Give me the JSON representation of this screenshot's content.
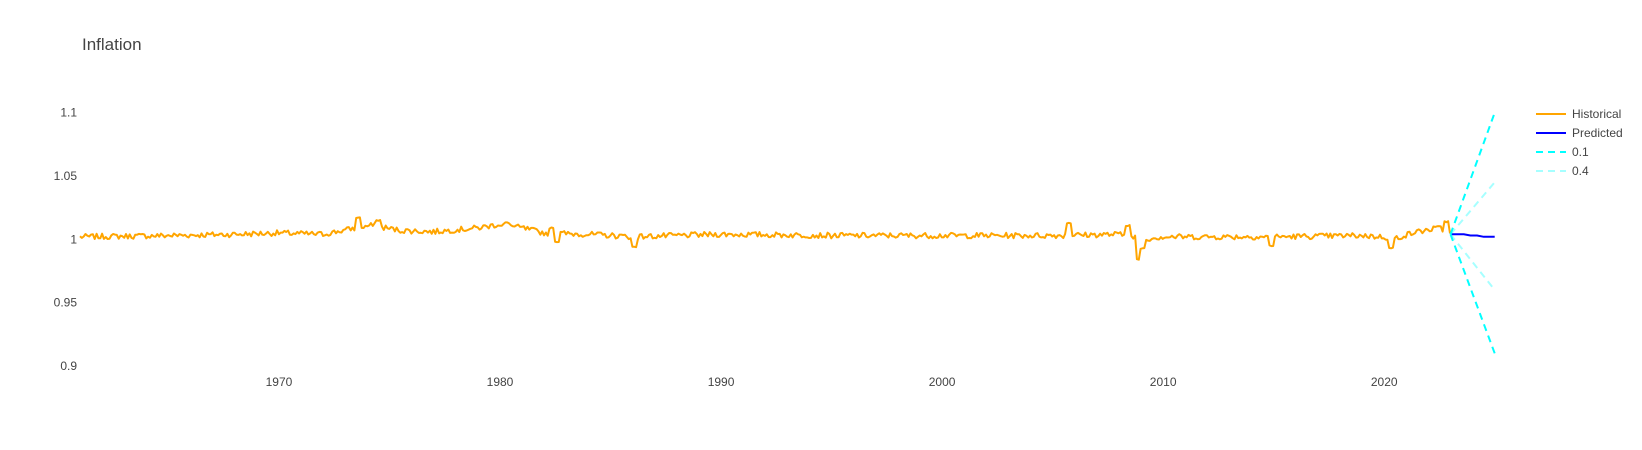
{
  "chart_data": {
    "type": "line",
    "title": "Inflation",
    "xlabel": "",
    "ylabel": "",
    "xlim": [
      1961,
      2025.6
    ],
    "ylim": [
      0.9,
      1.11
    ],
    "x_ticks": [
      {
        "value": 1970,
        "label": "1970"
      },
      {
        "value": 1980,
        "label": "1980"
      },
      {
        "value": 1990,
        "label": "1990"
      },
      {
        "value": 2000,
        "label": "2000"
      },
      {
        "value": 2010,
        "label": "2010"
      },
      {
        "value": 2020,
        "label": "2020"
      }
    ],
    "y_ticks": [
      {
        "value": 0.9,
        "label": "0.9"
      },
      {
        "value": 0.95,
        "label": "0.95"
      },
      {
        "value": 1.0,
        "label": "1"
      },
      {
        "value": 1.05,
        "label": "1.05"
      },
      {
        "value": 1.1,
        "label": "1.1"
      }
    ],
    "legend_position": "top-right",
    "series": [
      {
        "name": "Historical",
        "color": "#FFA500",
        "dash": "solid",
        "generated": true,
        "x_start": 1961,
        "x_end": 2023.0,
        "x_step": 0.0833,
        "base": 1.0,
        "anchors": [
          [
            1961,
            1.002
          ],
          [
            1965,
            1.003
          ],
          [
            1968,
            1.004
          ],
          [
            1970,
            1.005
          ],
          [
            1972,
            1.004
          ],
          [
            1973.5,
            1.009
          ],
          [
            1974.2,
            1.011
          ],
          [
            1975.5,
            1.007
          ],
          [
            1977,
            1.006
          ],
          [
            1979,
            1.009
          ],
          [
            1980,
            1.012
          ],
          [
            1981,
            1.009
          ],
          [
            1982,
            1.005
          ],
          [
            1984,
            1.004
          ],
          [
            1986,
            1.002
          ],
          [
            1990,
            1.004
          ],
          [
            1995,
            1.003
          ],
          [
            2000,
            1.003
          ],
          [
            2005,
            1.003
          ],
          [
            2008,
            1.004
          ],
          [
            2009,
            1.0
          ],
          [
            2010,
            1.002
          ],
          [
            2015,
            1.002
          ],
          [
            2019,
            1.003
          ],
          [
            2020.5,
            1.001
          ],
          [
            2021.5,
            1.006
          ],
          [
            2022.5,
            1.009
          ],
          [
            2023.0,
            1.004
          ]
        ],
        "noise": 0.0022,
        "spikes": [
          [
            1973.6,
            1.017
          ],
          [
            1974.5,
            1.015
          ],
          [
            1980.3,
            1.013
          ],
          [
            1982.3,
            1.009
          ],
          [
            1982.6,
            0.998
          ],
          [
            1986.1,
            0.994
          ],
          [
            2005.7,
            1.013
          ],
          [
            2008.4,
            1.011
          ],
          [
            2008.9,
            0.984
          ],
          [
            2009.1,
            0.993
          ],
          [
            2014.9,
            0.995
          ],
          [
            2020.3,
            0.993
          ],
          [
            2022.8,
            1.014
          ]
        ]
      },
      {
        "name": "Predicted",
        "color": "#0000FF",
        "dash": "solid",
        "x": [
          2023.0,
          2023.3,
          2023.6,
          2023.9,
          2024.2,
          2024.5,
          2024.8,
          2025.0
        ],
        "values": [
          1.004,
          1.004,
          1.004,
          1.003,
          1.003,
          1.002,
          1.002,
          1.002
        ]
      },
      {
        "name": "0.1",
        "color": "#00FFFF",
        "dash": "dash",
        "opacity": 1.0,
        "upper": {
          "x": [
            2023.0,
            2025.0
          ],
          "values": [
            1.004,
            1.1
          ]
        },
        "lower": {
          "x": [
            2023.0,
            2025.0
          ],
          "values": [
            1.004,
            0.91
          ]
        }
      },
      {
        "name": "0.4",
        "color": "#00FFFF",
        "dash": "dash",
        "opacity": 0.35,
        "upper": {
          "x": [
            2023.0,
            2025.0
          ],
          "values": [
            1.004,
            1.045
          ]
        },
        "lower": {
          "x": [
            2023.0,
            2025.0
          ],
          "values": [
            1.004,
            0.96
          ]
        }
      }
    ]
  }
}
